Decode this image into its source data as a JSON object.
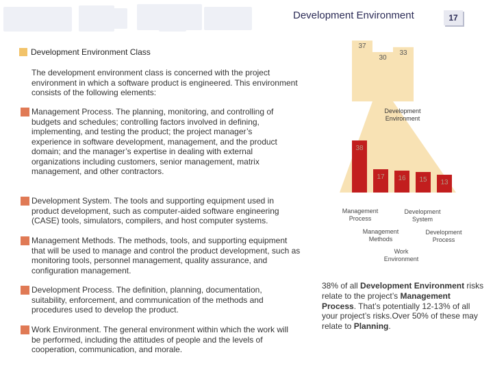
{
  "slide": {
    "title": "Development Environment",
    "page_number": "17"
  },
  "section": {
    "heading": "Development Environment Class",
    "intro": "The development environment class is concerned with the project environment in which a software product is engineered. This environment consists of the following elements:"
  },
  "bullets": [
    {
      "term": "Management Process",
      "desc": ". The planning, monitoring, and controlling of budgets and schedules; controlling factors involved in defining, implementing, and testing the product; the project manager’s experience in software development, management, and the product domain; and the manager’s expertise in dealing with external organizations including customers, senior management, matrix management, and other contractors."
    },
    {
      "term": "Development System",
      "desc": ". The tools and supporting equipment used in product development, such as computer-aided software engineering (CASE) tools, simulators, compilers, and host computer systems."
    },
    {
      "term": "Management Methods",
      "desc": ". The methods, tools, and supporting equipment that will be used to manage and control the product development, such as monitoring tools, personnel management, quality assurance, and configuration management."
    },
    {
      "term": "Development Process",
      "desc": ". The definition, planning, documentation, suitability, enforcement, and communication of the methods and procedures used to develop the product."
    },
    {
      "term": "Work Environment",
      "desc": ". The general environment within which the work will be performed, including the attitudes of people and the levels of cooperation, communication, and morale."
    }
  ],
  "chart_data": {
    "type": "bar",
    "top_values": [
      {
        "value": 37
      },
      {
        "value": 30
      },
      {
        "value": 33
      }
    ],
    "selected_label": "Development Environment",
    "categories": [
      "Management Process",
      "Development System",
      "Management Methods",
      "Development Process",
      "Work Environment"
    ],
    "values": [
      38,
      17,
      16,
      15,
      13
    ],
    "bar_label_texts": [
      "38",
      "17",
      "16",
      "15",
      "13"
    ],
    "colors": {
      "top_bars": "#f8e2b4",
      "bars": "#c21e1e",
      "wedge": "#f8e2b4",
      "label_text": "#b59a86"
    }
  },
  "caption": {
    "pre": "38% of all ",
    "b1": "Development Environment",
    "mid1": " risks relate to the project’s ",
    "b2": "Management Process",
    "mid2": ". That’s potentially 12-13% of all your project’s risks.Over 50% of these may relate to ",
    "b3": "Planning",
    "post": "."
  }
}
